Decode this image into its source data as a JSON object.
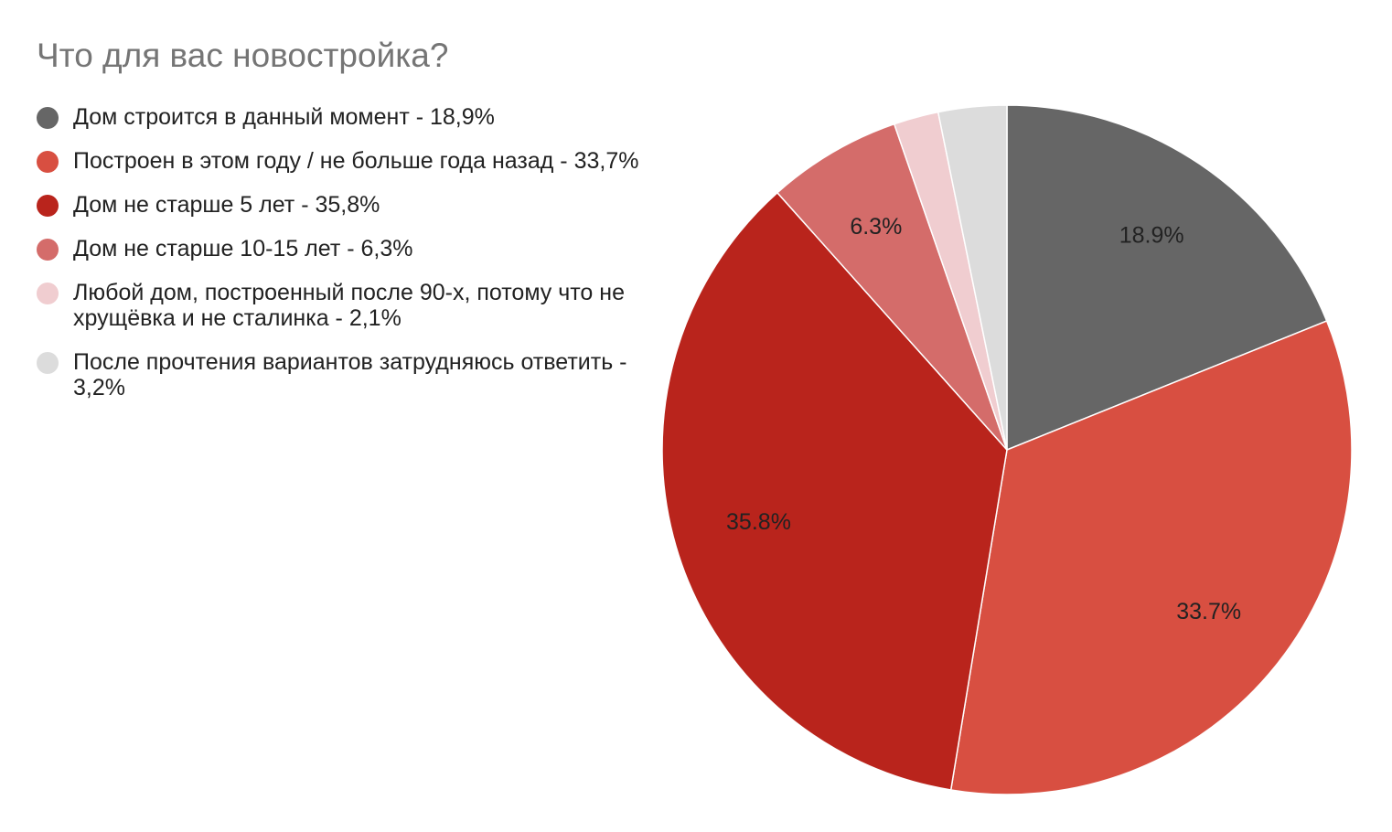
{
  "chart_data": {
    "type": "pie",
    "title": "Что для вас новостройка?",
    "legend_position": "left",
    "slices": [
      {
        "legend": "Дом строится в данный момент - 18,9%",
        "value": 18.9,
        "label": "18.9%",
        "color": "#666666"
      },
      {
        "legend": "Построен в этом году / не больше года назад - 33,7%",
        "value": 33.7,
        "label": "33.7%",
        "color": "#d84f41"
      },
      {
        "legend": "Дом не старше 5 лет - 35,8%",
        "value": 35.8,
        "label": "35.8%",
        "color": "#b9241c"
      },
      {
        "legend": "Дом не старше 10-15 лет - 6,3%",
        "value": 6.3,
        "label": "6.3%",
        "color": "#d46c6a"
      },
      {
        "legend": "Любой дом, построенный после 90-х, потому что не хрущёвка и не сталинка - 2,1%",
        "value": 2.1,
        "label": "",
        "color": "#f0cdd0"
      },
      {
        "legend": "После прочтения вариантов затрудняюсь ответить - 3,2%",
        "value": 3.2,
        "label": "",
        "color": "#dcdcdc"
      }
    ]
  }
}
